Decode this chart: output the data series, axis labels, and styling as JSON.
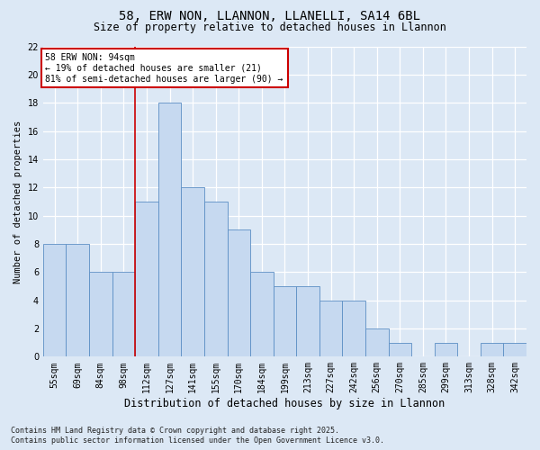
{
  "title": "58, ERW NON, LLANNON, LLANELLI, SA14 6BL",
  "subtitle": "Size of property relative to detached houses in Llannon",
  "xlabel": "Distribution of detached houses by size in Llannon",
  "ylabel": "Number of detached properties",
  "categories": [
    "55sqm",
    "69sqm",
    "84sqm",
    "98sqm",
    "112sqm",
    "127sqm",
    "141sqm",
    "155sqm",
    "170sqm",
    "184sqm",
    "199sqm",
    "213sqm",
    "227sqm",
    "242sqm",
    "256sqm",
    "270sqm",
    "285sqm",
    "299sqm",
    "313sqm",
    "328sqm",
    "342sqm"
  ],
  "values": [
    8,
    8,
    6,
    6,
    11,
    18,
    12,
    11,
    9,
    6,
    5,
    5,
    4,
    4,
    2,
    1,
    0,
    1,
    0,
    1,
    1
  ],
  "bar_color": "#c6d9f0",
  "bar_edge_color": "#5b8ec4",
  "background_color": "#dce8f5",
  "grid_color": "#ffffff",
  "red_line_x": 3.5,
  "annotation_line1": "58 ERW NON: 94sqm",
  "annotation_line2": "← 19% of detached houses are smaller (21)",
  "annotation_line3": "81% of semi-detached houses are larger (90) →",
  "ylim_max": 22,
  "yticks": [
    0,
    2,
    4,
    6,
    8,
    10,
    12,
    14,
    16,
    18,
    20,
    22
  ],
  "footer": "Contains HM Land Registry data © Crown copyright and database right 2025.\nContains public sector information licensed under the Open Government Licence v3.0.",
  "title_fontsize": 10,
  "subtitle_fontsize": 8.5,
  "xlabel_fontsize": 8.5,
  "ylabel_fontsize": 7.5,
  "tick_fontsize": 7,
  "annotation_fontsize": 7,
  "footer_fontsize": 6
}
